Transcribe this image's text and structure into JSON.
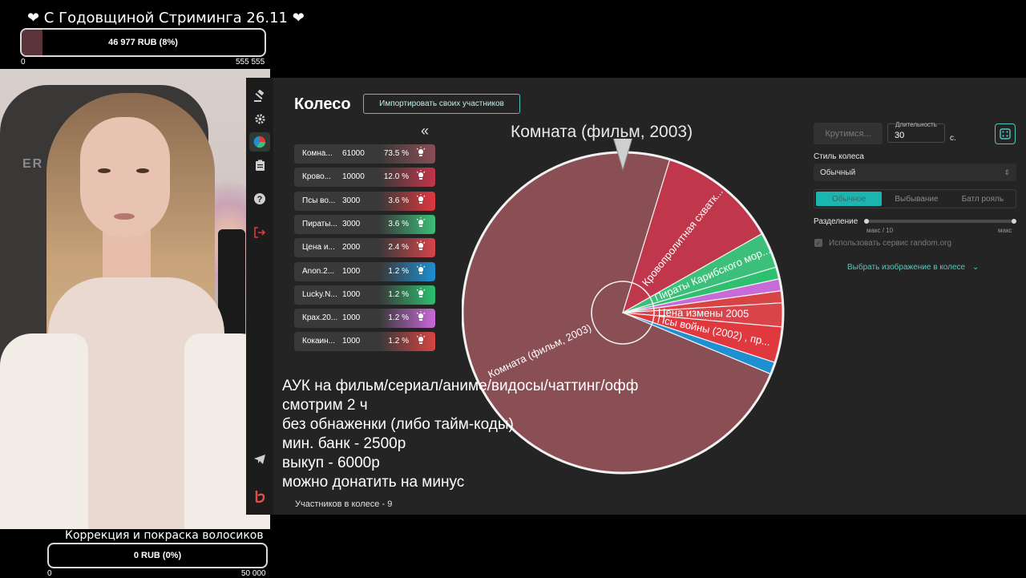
{
  "top_goal": {
    "title": "❤ С Годовщиной Стриминга 26.11 ❤",
    "progress_text": "46 977 RUB (8%)",
    "progress_fraction": 0.085,
    "min": "0",
    "max": "555 555",
    "fill_color": "#5a3439"
  },
  "bottom_goal": {
    "title": "Коррекция и покраска волосиков",
    "progress_text": "0 RUB (0%)",
    "progress_fraction": 0,
    "min": "0",
    "max": "50 000"
  },
  "webcam": {
    "chair_logo": "ER"
  },
  "sidebar": {
    "items": [
      {
        "name": "auction",
        "icon": "gavel-icon",
        "glyph": "⚖"
      },
      {
        "name": "settings",
        "icon": "gear-icon",
        "glyph": "⚙"
      },
      {
        "name": "wheel",
        "icon": "pie-chart-icon",
        "glyph": "◕"
      },
      {
        "name": "history",
        "icon": "clipboard-icon",
        "glyph": "📋"
      },
      {
        "name": "help",
        "icon": "help-icon",
        "glyph": "?"
      },
      {
        "name": "logout",
        "icon": "logout-icon",
        "glyph": "⇥"
      },
      {
        "name": "telegram",
        "icon": "telegram-icon",
        "glyph": "➤"
      },
      {
        "name": "brand",
        "icon": "brand-logo-icon",
        "glyph": "b"
      }
    ]
  },
  "header": {
    "title": "Колесо",
    "import_button": "Импортировать своих участников",
    "collapse_glyph": "«"
  },
  "participants": [
    {
      "name": "Комна...",
      "amount": "61000",
      "percent": "73.5 %",
      "color": "#8a4e55"
    },
    {
      "name": "Крово...",
      "amount": "10000",
      "percent": "12.0 %",
      "color": "#c0364a"
    },
    {
      "name": "Псы во...",
      "amount": "3000",
      "percent": "3.6 %",
      "color": "#e0383f"
    },
    {
      "name": "Пираты...",
      "amount": "3000",
      "percent": "3.6 %",
      "color": "#3cbf78"
    },
    {
      "name": "Цена и...",
      "amount": "2000",
      "percent": "2.4 %",
      "color": "#d8444a"
    },
    {
      "name": "Anon.2...",
      "amount": "1000",
      "percent": "1.2 %",
      "color": "#1e8fd1"
    },
    {
      "name": "Lucky.N...",
      "amount": "1000",
      "percent": "1.2 %",
      "color": "#2cc070"
    },
    {
      "name": "Крах.20...",
      "amount": "1000",
      "percent": "1.2 %",
      "color": "#c86ad8"
    },
    {
      "name": "Кокаин...",
      "amount": "1000",
      "percent": "1.2 %",
      "color": "#d84444"
    }
  ],
  "wheel": {
    "winner_title": "Комната (фильм, 2003)",
    "slices": [
      {
        "label": "Комната (фильм, 2003)",
        "value": 61000,
        "color": "#8a4e55"
      },
      {
        "label": "Кровопролитная схватк...",
        "value": 10000,
        "color": "#c0364a"
      },
      {
        "label": "Пираты Карибского мор...",
        "value": 3000,
        "color": "#3cbf78"
      },
      {
        "label": "",
        "value": 1000,
        "color": "#2cc070"
      },
      {
        "label": "",
        "value": 1000,
        "color": "#c86ad8"
      },
      {
        "label": "",
        "value": 1000,
        "color": "#d84444"
      },
      {
        "label": "Цена измены 2005",
        "value": 2000,
        "color": "#d8444a"
      },
      {
        "label": "Псы войны (2002) , пр...",
        "value": 3000,
        "color": "#e0383f"
      },
      {
        "label": "",
        "value": 1000,
        "color": "#1e8fd1"
      }
    ],
    "rotation_deg": 22.5
  },
  "overlay_lines": [
    "АУК на фильм/сериал/аниме/видосы/чаттинг/офф",
    "смотрим 2 ч",
    "без обнаженки (либо тайм-коды)",
    "мин. банк - 2500р",
    "выкуп - 6000р",
    "можно донатить на минус"
  ],
  "footer": {
    "participants_count": "Участников в колесе - 9"
  },
  "controls": {
    "spin_button": "Крутимся...",
    "duration_label": "Длительность",
    "duration_value": "30",
    "duration_unit": "с.",
    "random_icon": "dice-icon",
    "style_label": "Стиль колеса",
    "style_value": "Обычный",
    "modes": [
      "Обычное",
      "Выбывание",
      "Батл рояль"
    ],
    "active_mode": 0,
    "separation_label": "Разделение",
    "separation_min": "макс / 10",
    "separation_max": "макс",
    "random_org_label": "Использовать сервис random.org",
    "image_link": "Выбрать изображение в колесе"
  },
  "accent_color": "#4fc7c0"
}
